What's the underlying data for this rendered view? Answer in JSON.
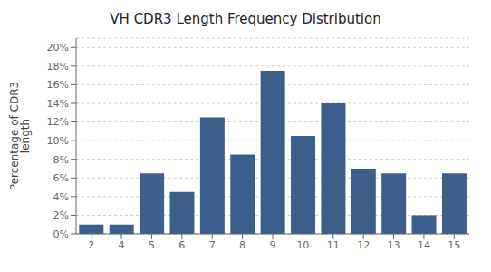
{
  "chart_data": {
    "type": "bar",
    "title": "VH CDR3 Length Frequency Distribution",
    "ylabel": "Percentage of CDR3\nlength",
    "categories": [
      2,
      4,
      5,
      6,
      7,
      8,
      9,
      10,
      11,
      12,
      13,
      14,
      15
    ],
    "values": [
      1.0,
      1.0,
      6.5,
      4.5,
      12.5,
      8.5,
      17.5,
      10.5,
      14.0,
      7.0,
      6.5,
      2.0,
      6.5
    ],
    "color": "#3B5F8A",
    "ylim": [
      0,
      21
    ],
    "yticks": [
      {
        "value": 0,
        "label": "0%"
      },
      {
        "value": 2,
        "label": "2%"
      },
      {
        "value": 4,
        "label": "4%"
      },
      {
        "value": 6,
        "label": "6%"
      },
      {
        "value": 8,
        "label": "8%"
      },
      {
        "value": 10,
        "label": "10%"
      },
      {
        "value": 12,
        "label": "12%"
      },
      {
        "value": 14,
        "label": "14%"
      },
      {
        "value": 16,
        "label": "16%"
      },
      {
        "value": 18,
        "label": "18%"
      },
      {
        "value": 20,
        "label": "20%"
      }
    ],
    "grid": true
  }
}
